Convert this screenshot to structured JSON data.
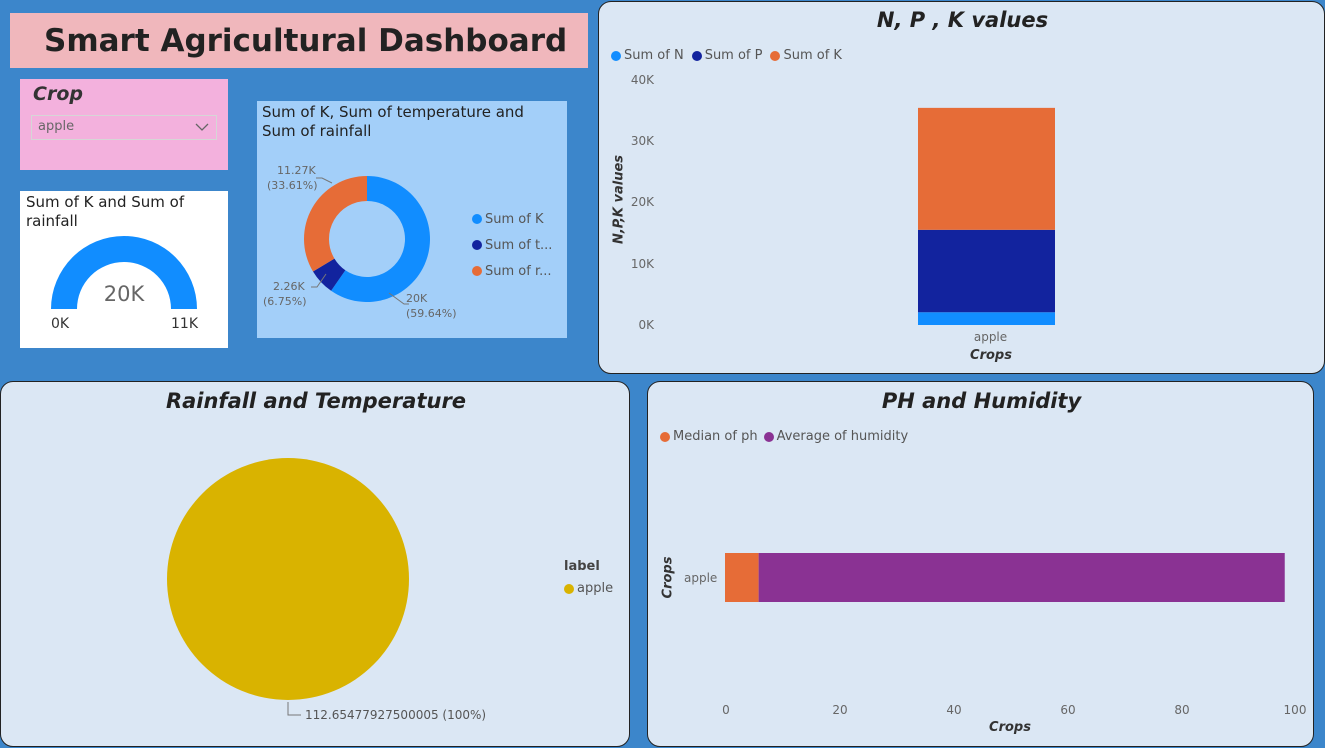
{
  "title": "Smart Agricultural Dashboard",
  "slicer": {
    "label": "Crop",
    "value": "apple"
  },
  "gauge": {
    "title": "Sum of K and Sum of rainfall",
    "value_label": "20K",
    "min_label": "0K",
    "max_label": "11K",
    "color": "#118dff"
  },
  "donut": {
    "title": "Sum of K, Sum of temperature and Sum of rainfall",
    "legend": [
      "Sum of K",
      "Sum of t...",
      "Sum of r..."
    ],
    "labels": [
      {
        "value": "20K",
        "pct": "(59.64%)"
      },
      {
        "value": "2.26K",
        "pct": "(6.75%)"
      },
      {
        "value": "11.27K",
        "pct": "(33.61%)"
      }
    ],
    "colors": [
      "#118dff",
      "#12239e",
      "#e66c37"
    ]
  },
  "npk": {
    "title": "N, P , K values",
    "legend": [
      "Sum of N",
      "Sum of P",
      "Sum of K"
    ],
    "y_ticks": [
      "0K",
      "10K",
      "20K",
      "30K",
      "40K"
    ],
    "ylabel": "N,P,K values",
    "xlabel": "Crops",
    "category": "apple"
  },
  "rainfall": {
    "title": "Rainfall and Temperature",
    "legend_title": "label",
    "legend_item": "apple",
    "data_label": "112.65477927500005 (100%)",
    "color": "#d9b300"
  },
  "phh": {
    "title": "PH and Humidity",
    "legend": [
      "Median of ph",
      "Average of humidity"
    ],
    "x_ticks": [
      "0",
      "20",
      "40",
      "60",
      "80",
      "100"
    ],
    "ylabel": "Crops",
    "xlabel": "Crops",
    "category": "apple"
  },
  "chart_data": [
    {
      "type": "pie",
      "title": "Sum of K, Sum of temperature and Sum of rainfall",
      "categories": [
        "Sum of K",
        "Sum of temperature",
        "Sum of rainfall"
      ],
      "values": [
        20000,
        2260,
        11270
      ],
      "percents": [
        59.64,
        6.75,
        33.61
      ]
    },
    {
      "type": "bar",
      "title": "N, P , K values",
      "categories": [
        "apple"
      ],
      "series": [
        {
          "name": "Sum of N",
          "values": [
            2080
          ]
        },
        {
          "name": "Sum of P",
          "values": [
            13460
          ]
        },
        {
          "name": "Sum of K",
          "values": [
            19910
          ]
        }
      ],
      "stacked": true,
      "ylim": [
        0,
        40000
      ],
      "ylabel": "N,P,K values",
      "xlabel": "Crops",
      "colors": [
        "#118dff",
        "#12239e",
        "#e66c37"
      ]
    },
    {
      "type": "pie",
      "title": "Rainfall and Temperature",
      "categories": [
        "apple"
      ],
      "values": [
        112.65477927500005
      ],
      "percents": [
        100
      ]
    },
    {
      "type": "bar",
      "title": "PH and Humidity",
      "categories": [
        "apple"
      ],
      "orientation": "horizontal",
      "series": [
        {
          "name": "Median of ph",
          "values": [
            5.9
          ]
        },
        {
          "name": "Average of humidity",
          "values": [
            92.3
          ]
        }
      ],
      "stacked": true,
      "xlim": [
        0,
        100
      ],
      "ylabel": "Crops",
      "xlabel": "Crops",
      "colors": [
        "#e66c37",
        "#8a3293"
      ]
    }
  ]
}
